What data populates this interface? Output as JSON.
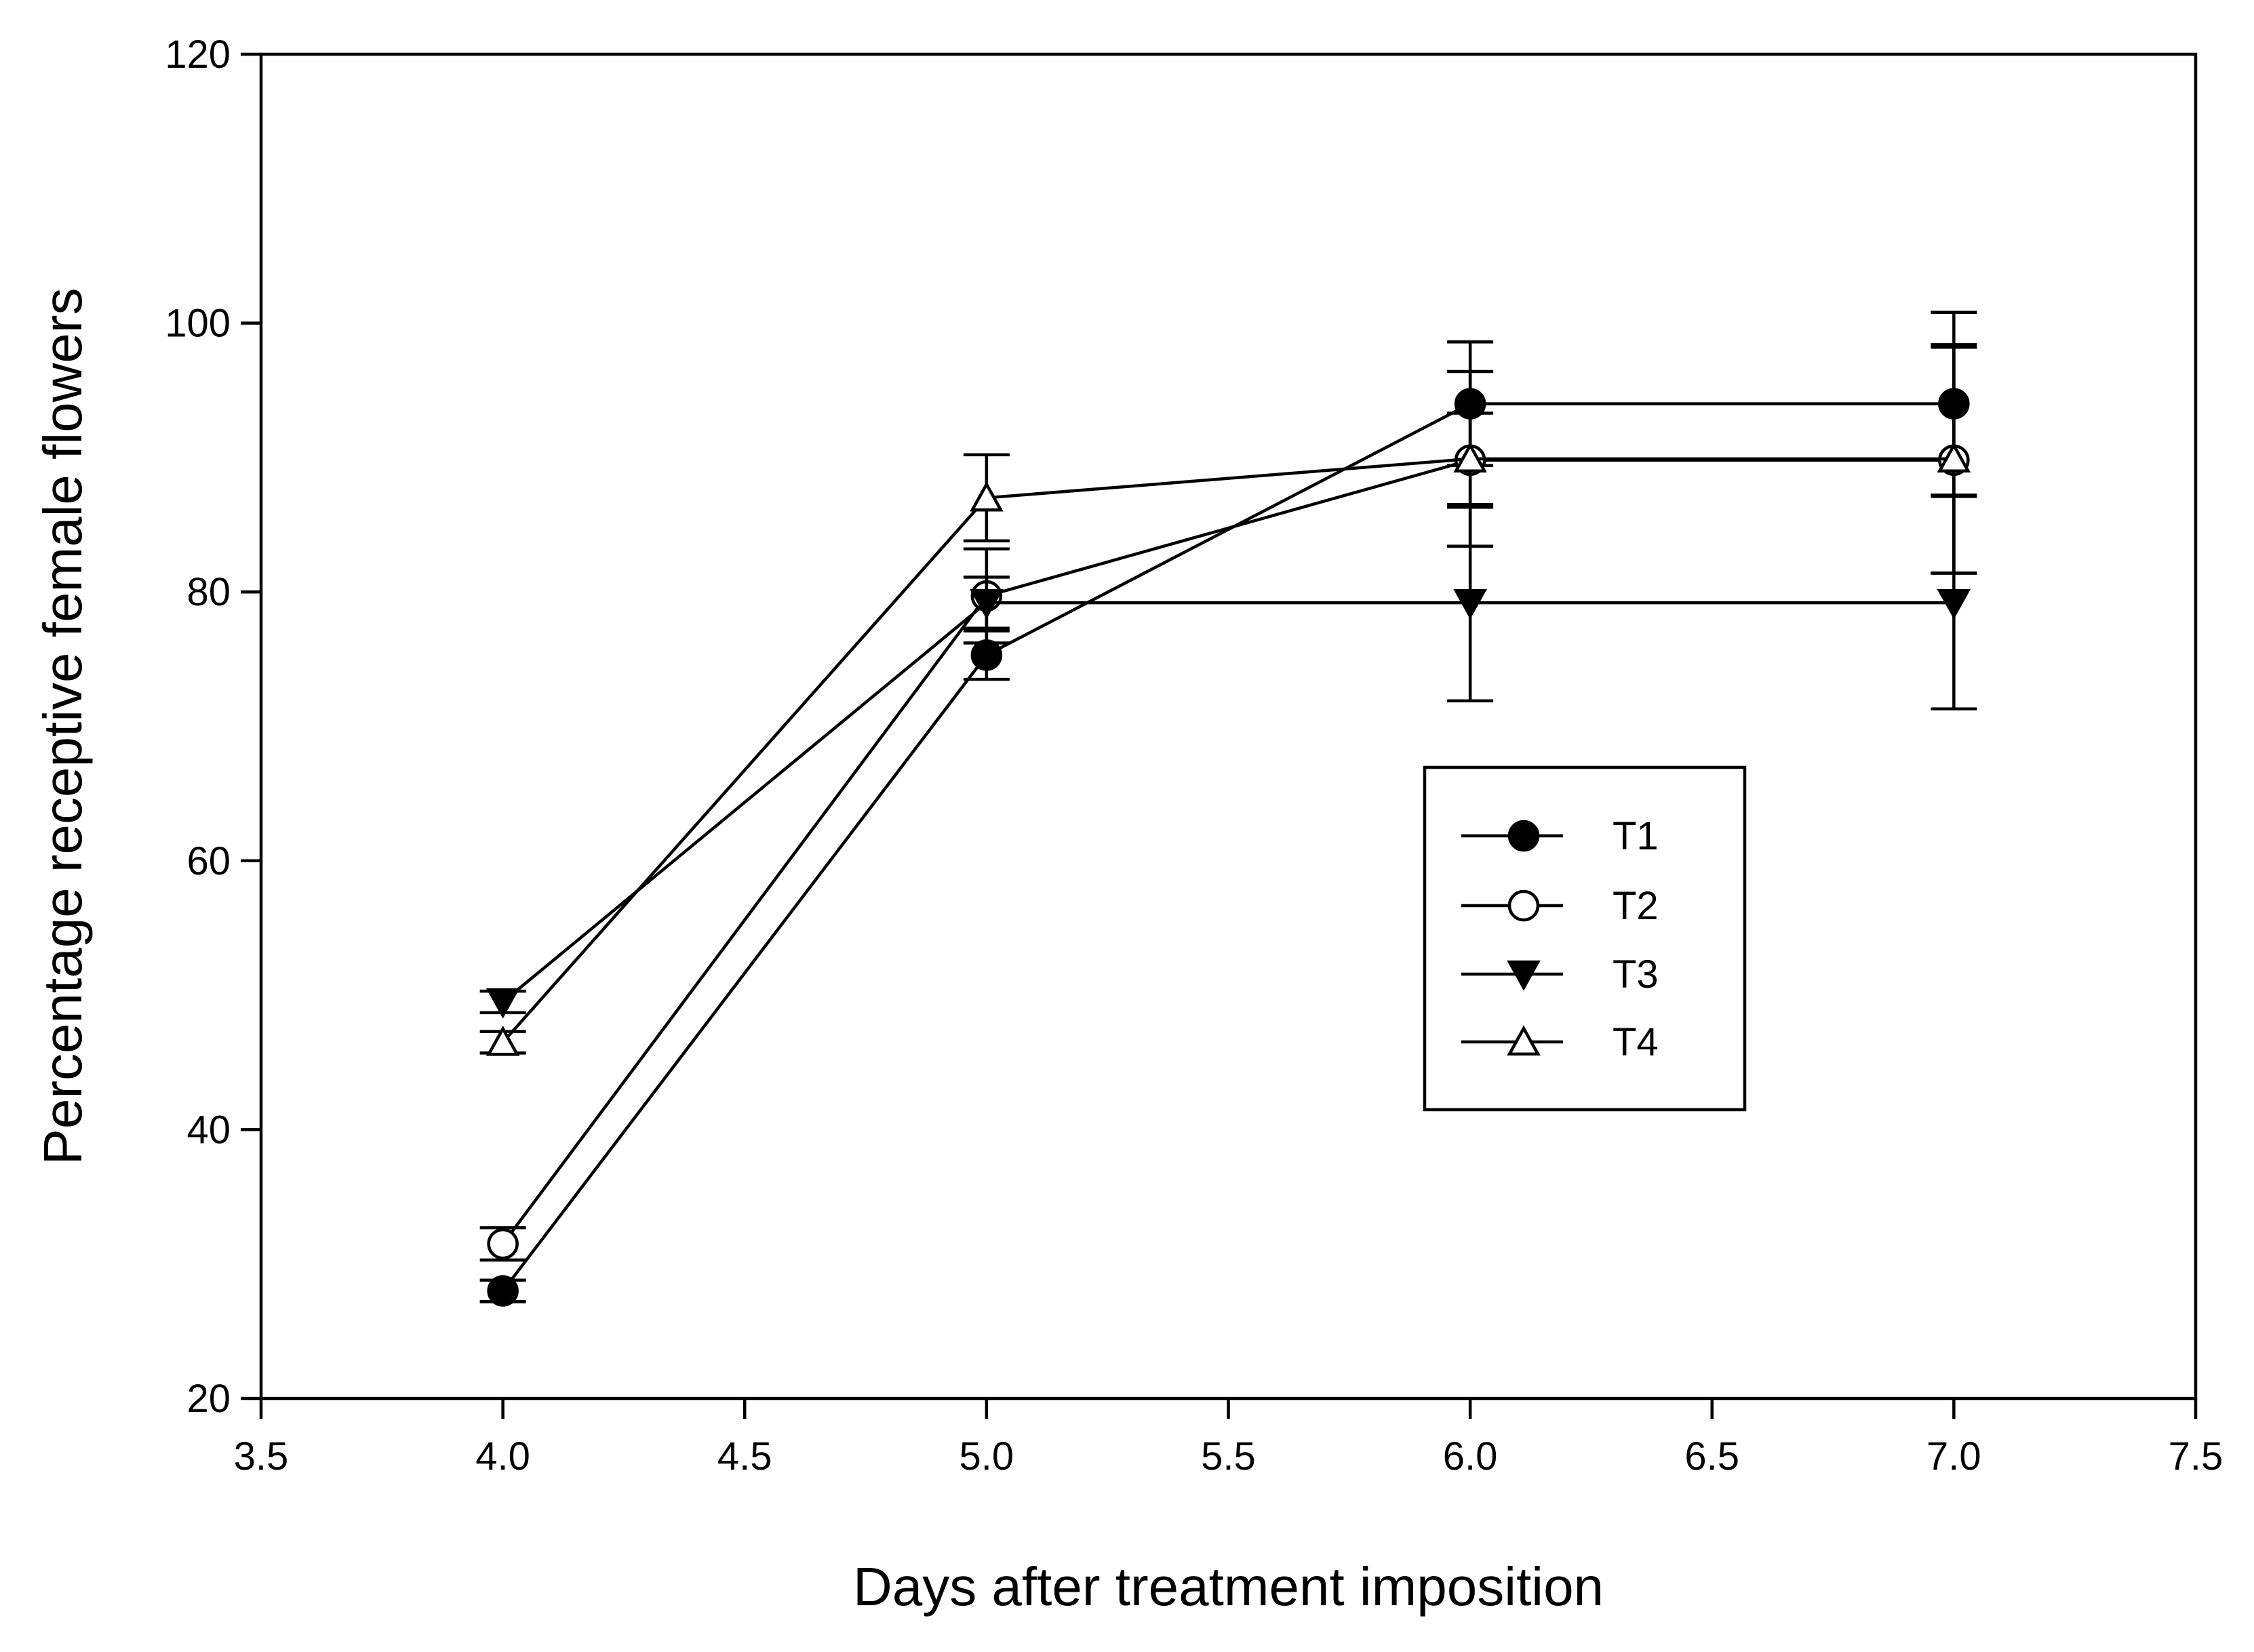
{
  "chart_data": {
    "type": "line",
    "title": "",
    "xlabel": "Days after treatment imposition",
    "ylabel": "Percentage receptive female flowers",
    "xlim": [
      3.5,
      7.5
    ],
    "ylim": [
      20,
      120
    ],
    "xticks": [
      3.5,
      4.0,
      4.5,
      5.0,
      5.5,
      6.0,
      6.5,
      7.0,
      7.5
    ],
    "xtick_labels": [
      "3.5",
      "4.0",
      "4.5",
      "5.0",
      "5.5",
      "6.0",
      "6.5",
      "7.0",
      "7.5"
    ],
    "yticks": [
      20,
      40,
      60,
      80,
      100,
      120
    ],
    "ytick_labels": [
      "20",
      "40",
      "60",
      "80",
      "100",
      "120"
    ],
    "grid": false,
    "legend_position": "center-right",
    "x": [
      4.0,
      5.0,
      6.0,
      7.0
    ],
    "series": [
      {
        "name": "T1",
        "marker": "filled-circle",
        "values": [
          28.0,
          75.3,
          94.0,
          94.0
        ],
        "errors": [
          0.8,
          1.8,
          4.6,
          6.8
        ]
      },
      {
        "name": "T2",
        "marker": "open-circle",
        "values": [
          31.5,
          79.7,
          89.8,
          89.8
        ],
        "errors": [
          1.2,
          3.5,
          3.5,
          8.4
        ]
      },
      {
        "name": "T3",
        "marker": "filled-triangle-down",
        "values": [
          49.5,
          79.2,
          79.2,
          79.2
        ],
        "errors": [
          0.8,
          1.9,
          7.3,
          7.9
        ]
      },
      {
        "name": "T4",
        "marker": "open-triangle-up",
        "values": [
          46.5,
          87.0,
          89.9,
          89.9
        ],
        "errors": [
          0.8,
          3.2,
          6.5,
          8.5
        ]
      }
    ]
  }
}
